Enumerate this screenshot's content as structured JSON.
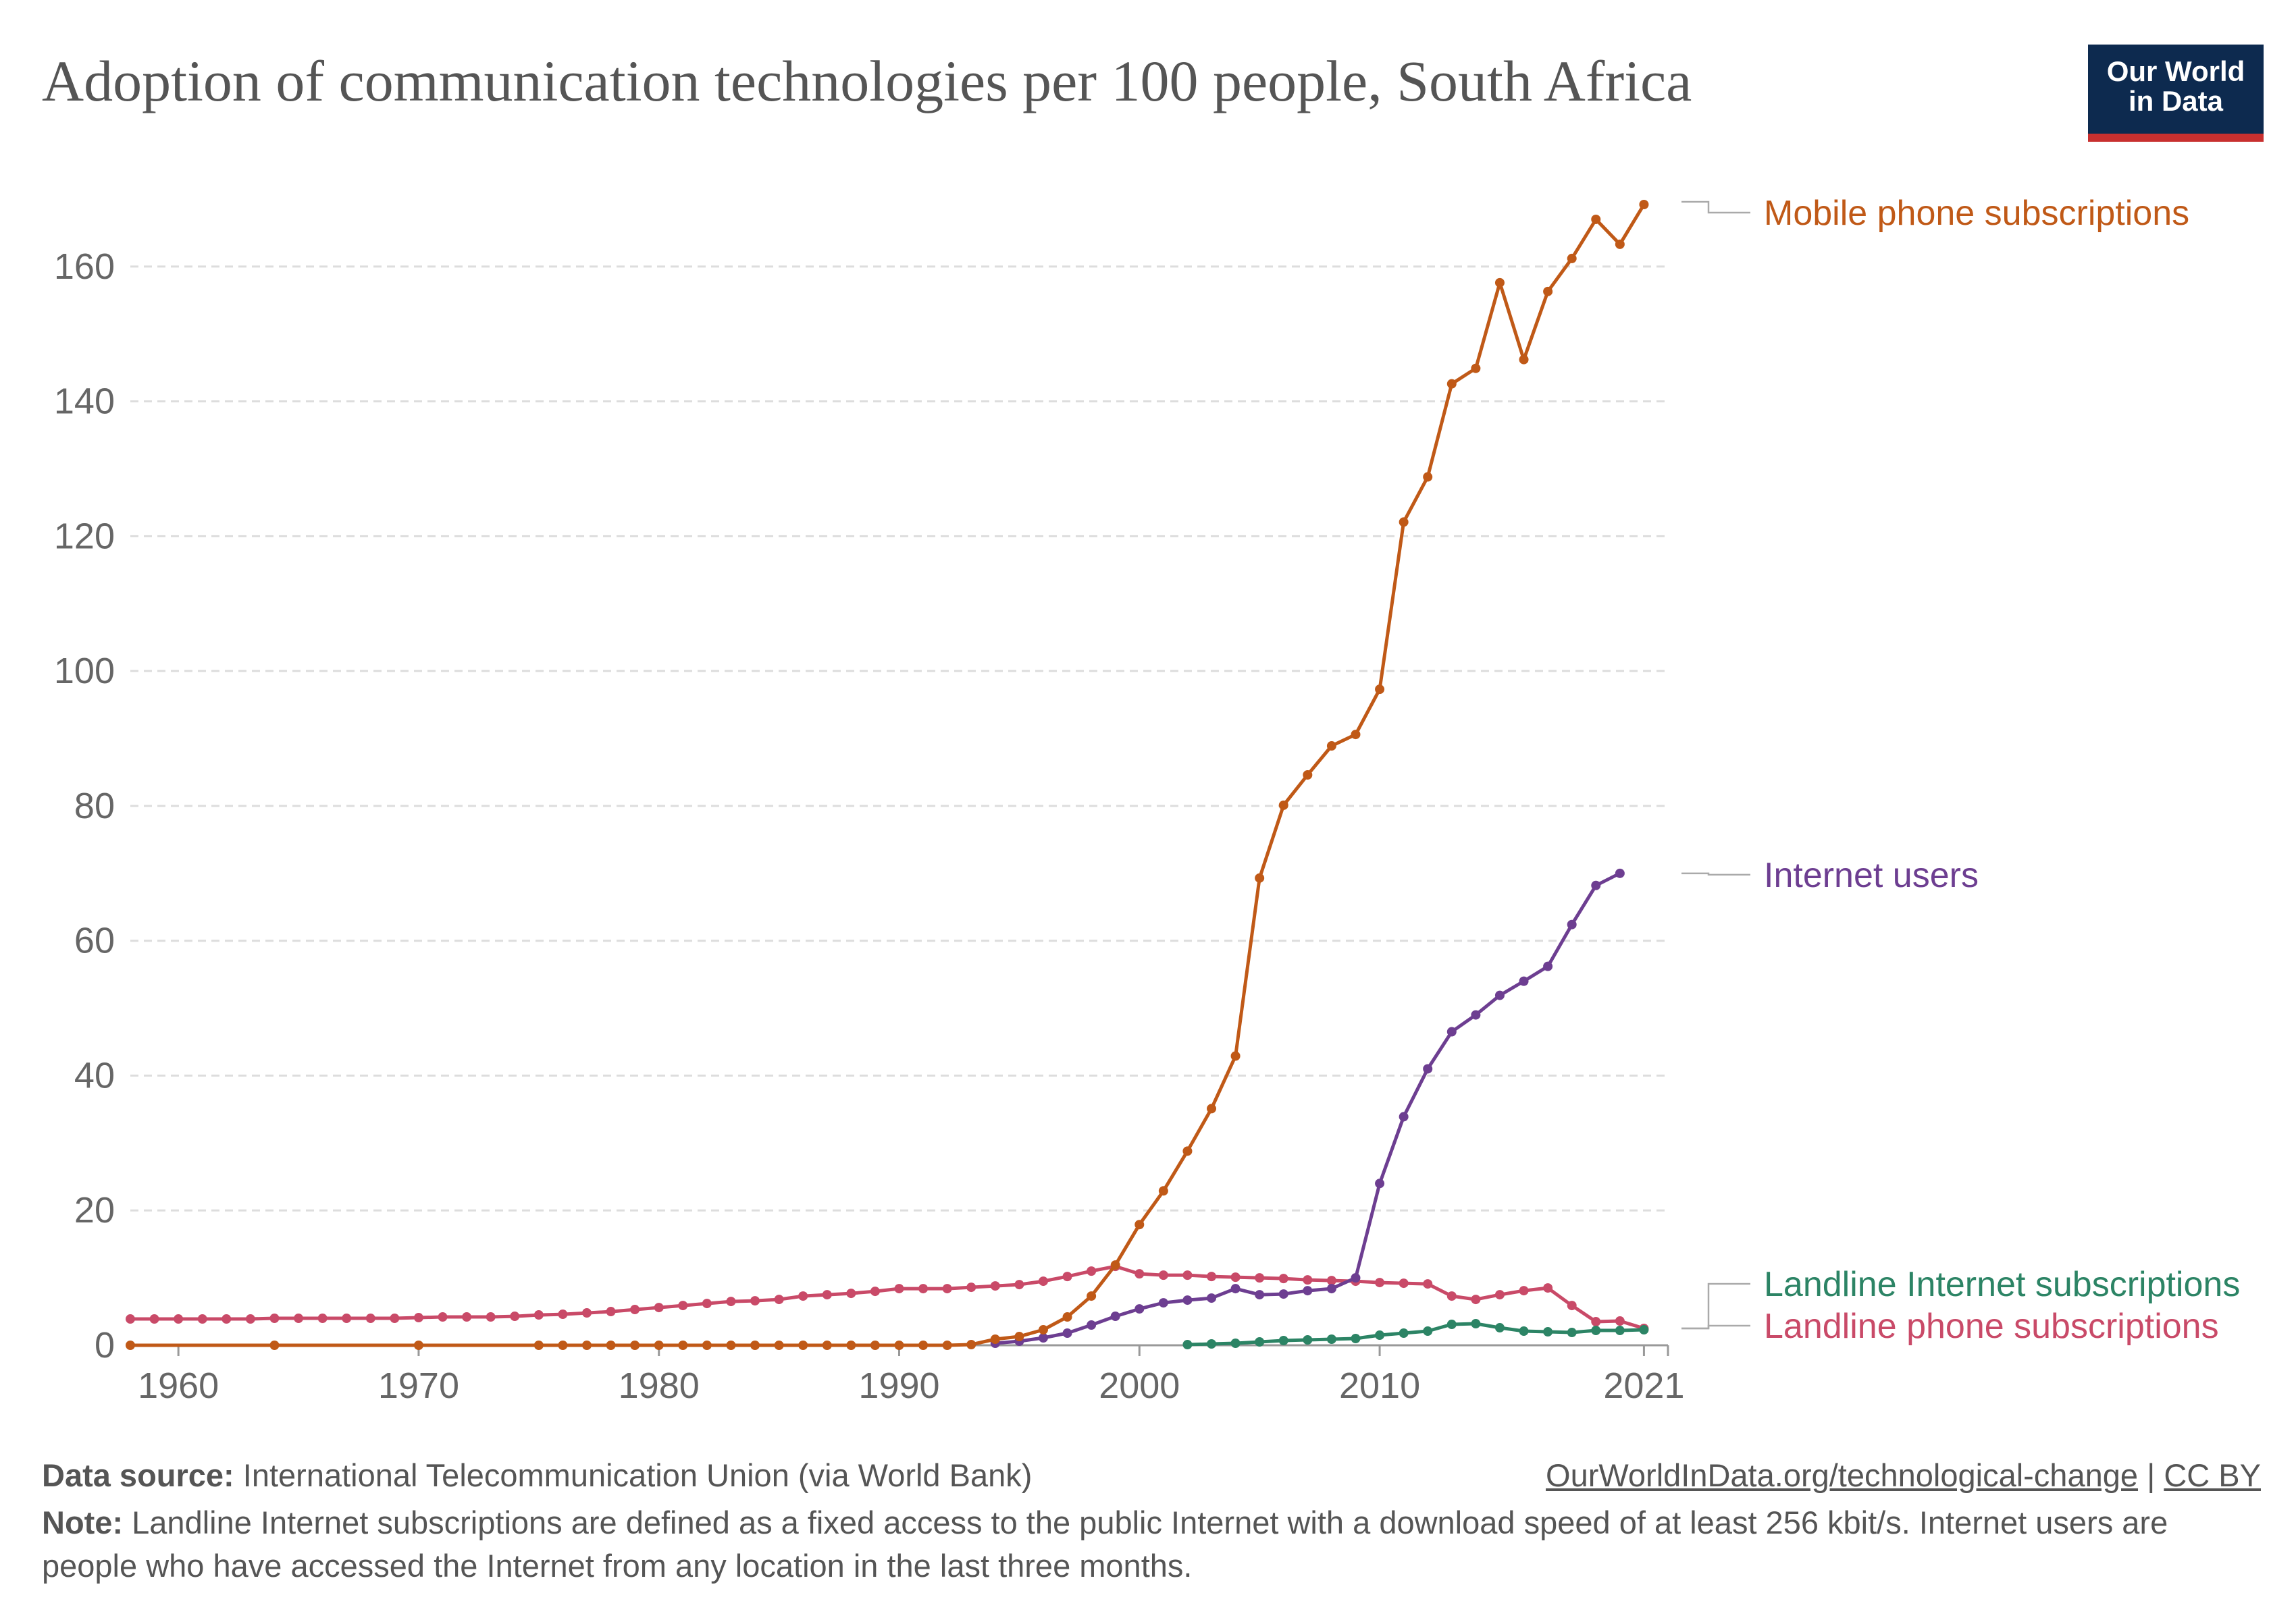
{
  "title": "Adoption of communication technologies per 100 people, South Africa",
  "logo": {
    "line1": "Our World",
    "line2": "in Data"
  },
  "footer": {
    "source_label": "Data source:",
    "source_text": "International Telecommunication Union (via World Bank)",
    "link_text": "OurWorldInData.org/technological-change",
    "license_sep": "|",
    "license_text": "CC BY",
    "note_label": "Note:",
    "note_text": "Landline Internet subscriptions are defined as a fixed access to the public Internet with a download speed of at least 256 kbit/s. Internet users are people who have accessed the Internet from any location in the last three months."
  },
  "colors": {
    "mobile": "#c05917",
    "internet": "#6d3e91",
    "landline_internet": "#2c8465",
    "landline_phone": "#c94a68",
    "grid": "#dddddd",
    "axis_text": "#666666"
  },
  "chart_data": {
    "type": "line",
    "xlim": [
      1958,
      2022
    ],
    "ylim": [
      0,
      170
    ],
    "x_ticks": [
      1960,
      1970,
      1980,
      1990,
      2000,
      2010,
      2021
    ],
    "y_ticks": [
      0,
      20,
      40,
      60,
      80,
      100,
      120,
      140,
      160
    ],
    "grid": "horizontal-dashed",
    "legend": "inline-right",
    "series": [
      {
        "name": "Mobile phone subscriptions",
        "color": "#c05917",
        "points": [
          [
            1958,
            0
          ],
          [
            1964,
            0
          ],
          [
            1970,
            0
          ],
          [
            1975,
            0
          ],
          [
            1976,
            0
          ],
          [
            1977,
            0
          ],
          [
            1978,
            0
          ],
          [
            1979,
            0
          ],
          [
            1980,
            0
          ],
          [
            1981,
            0
          ],
          [
            1982,
            0
          ],
          [
            1983,
            0
          ],
          [
            1984,
            0
          ],
          [
            1985,
            0
          ],
          [
            1986,
            0
          ],
          [
            1987,
            0
          ],
          [
            1988,
            0
          ],
          [
            1989,
            0
          ],
          [
            1990,
            0
          ],
          [
            1991,
            0
          ],
          [
            1992,
            0
          ],
          [
            1993,
            0.1
          ],
          [
            1994,
            0.9
          ],
          [
            1995,
            1.3
          ],
          [
            1996,
            2.3
          ],
          [
            1997,
            4.2
          ],
          [
            1998,
            7.3
          ],
          [
            1999,
            11.9
          ],
          [
            2000,
            17.9
          ],
          [
            2001,
            22.9
          ],
          [
            2002,
            28.8
          ],
          [
            2003,
            35.1
          ],
          [
            2004,
            42.9
          ],
          [
            2005,
            69.3
          ],
          [
            2006,
            80.1
          ],
          [
            2007,
            84.6
          ],
          [
            2008,
            88.9
          ],
          [
            2009,
            90.6
          ],
          [
            2010,
            97.3
          ],
          [
            2011,
            122.1
          ],
          [
            2012,
            128.8
          ],
          [
            2013,
            142.6
          ],
          [
            2014,
            144.9
          ],
          [
            2015,
            157.6
          ],
          [
            2016,
            146.2
          ],
          [
            2017,
            156.3
          ],
          [
            2018,
            161.2
          ],
          [
            2019,
            167.0
          ],
          [
            2020,
            163.3
          ],
          [
            2021,
            169.2
          ]
        ]
      },
      {
        "name": "Internet users",
        "color": "#6d3e91",
        "points": [
          [
            1994,
            0.3
          ],
          [
            1995,
            0.6
          ],
          [
            1996,
            1.1
          ],
          [
            1997,
            1.8
          ],
          [
            1998,
            3.0
          ],
          [
            1999,
            4.3
          ],
          [
            2000,
            5.4
          ],
          [
            2001,
            6.3
          ],
          [
            2002,
            6.7
          ],
          [
            2003,
            7.0
          ],
          [
            2004,
            8.4
          ],
          [
            2005,
            7.5
          ],
          [
            2006,
            7.6
          ],
          [
            2007,
            8.1
          ],
          [
            2008,
            8.4
          ],
          [
            2009,
            10.0
          ],
          [
            2010,
            24.0
          ],
          [
            2011,
            33.9
          ],
          [
            2012,
            41.0
          ],
          [
            2013,
            46.5
          ],
          [
            2014,
            49.0
          ],
          [
            2015,
            51.9
          ],
          [
            2016,
            54.0
          ],
          [
            2017,
            56.2
          ],
          [
            2018,
            62.4
          ],
          [
            2019,
            68.2
          ],
          [
            2020,
            70.0
          ]
        ]
      },
      {
        "name": "Landline Internet subscriptions",
        "color": "#2c8465",
        "points": [
          [
            2002,
            0.1
          ],
          [
            2003,
            0.2
          ],
          [
            2004,
            0.3
          ],
          [
            2005,
            0.5
          ],
          [
            2006,
            0.7
          ],
          [
            2007,
            0.8
          ],
          [
            2008,
            0.9
          ],
          [
            2009,
            1.0
          ],
          [
            2010,
            1.5
          ],
          [
            2011,
            1.8
          ],
          [
            2012,
            2.1
          ],
          [
            2013,
            3.1
          ],
          [
            2014,
            3.2
          ],
          [
            2015,
            2.6
          ],
          [
            2016,
            2.1
          ],
          [
            2017,
            2.0
          ],
          [
            2018,
            1.9
          ],
          [
            2019,
            2.2
          ],
          [
            2020,
            2.2
          ],
          [
            2021,
            2.3
          ]
        ]
      },
      {
        "name": "Landline phone subscriptions",
        "color": "#c94a68",
        "points": [
          [
            1958,
            3.9
          ],
          [
            1959,
            3.9
          ],
          [
            1960,
            3.9
          ],
          [
            1961,
            3.9
          ],
          [
            1962,
            3.9
          ],
          [
            1963,
            3.9
          ],
          [
            1964,
            4.0
          ],
          [
            1965,
            4.0
          ],
          [
            1966,
            4.0
          ],
          [
            1967,
            4.0
          ],
          [
            1968,
            4.0
          ],
          [
            1969,
            4.0
          ],
          [
            1970,
            4.1
          ],
          [
            1971,
            4.2
          ],
          [
            1972,
            4.2
          ],
          [
            1973,
            4.2
          ],
          [
            1974,
            4.3
          ],
          [
            1975,
            4.5
          ],
          [
            1976,
            4.6
          ],
          [
            1977,
            4.8
          ],
          [
            1978,
            5.0
          ],
          [
            1979,
            5.3
          ],
          [
            1980,
            5.6
          ],
          [
            1981,
            5.9
          ],
          [
            1982,
            6.2
          ],
          [
            1983,
            6.5
          ],
          [
            1984,
            6.6
          ],
          [
            1985,
            6.8
          ],
          [
            1986,
            7.3
          ],
          [
            1987,
            7.5
          ],
          [
            1988,
            7.7
          ],
          [
            1989,
            8.0
          ],
          [
            1990,
            8.4
          ],
          [
            1991,
            8.4
          ],
          [
            1992,
            8.4
          ],
          [
            1993,
            8.6
          ],
          [
            1994,
            8.8
          ],
          [
            1995,
            9.0
          ],
          [
            1996,
            9.5
          ],
          [
            1997,
            10.2
          ],
          [
            1998,
            11.0
          ],
          [
            1999,
            11.7
          ],
          [
            2000,
            10.6
          ],
          [
            2001,
            10.4
          ],
          [
            2002,
            10.4
          ],
          [
            2003,
            10.2
          ],
          [
            2004,
            10.1
          ],
          [
            2005,
            10.0
          ],
          [
            2006,
            9.9
          ],
          [
            2007,
            9.7
          ],
          [
            2008,
            9.6
          ],
          [
            2009,
            9.5
          ],
          [
            2010,
            9.3
          ],
          [
            2011,
            9.2
          ],
          [
            2012,
            9.1
          ],
          [
            2013,
            7.3
          ],
          [
            2014,
            6.8
          ],
          [
            2015,
            7.5
          ],
          [
            2016,
            8.1
          ],
          [
            2017,
            8.5
          ],
          [
            2018,
            5.9
          ],
          [
            2019,
            3.5
          ],
          [
            2020,
            3.6
          ],
          [
            2021,
            2.5
          ]
        ]
      }
    ]
  }
}
